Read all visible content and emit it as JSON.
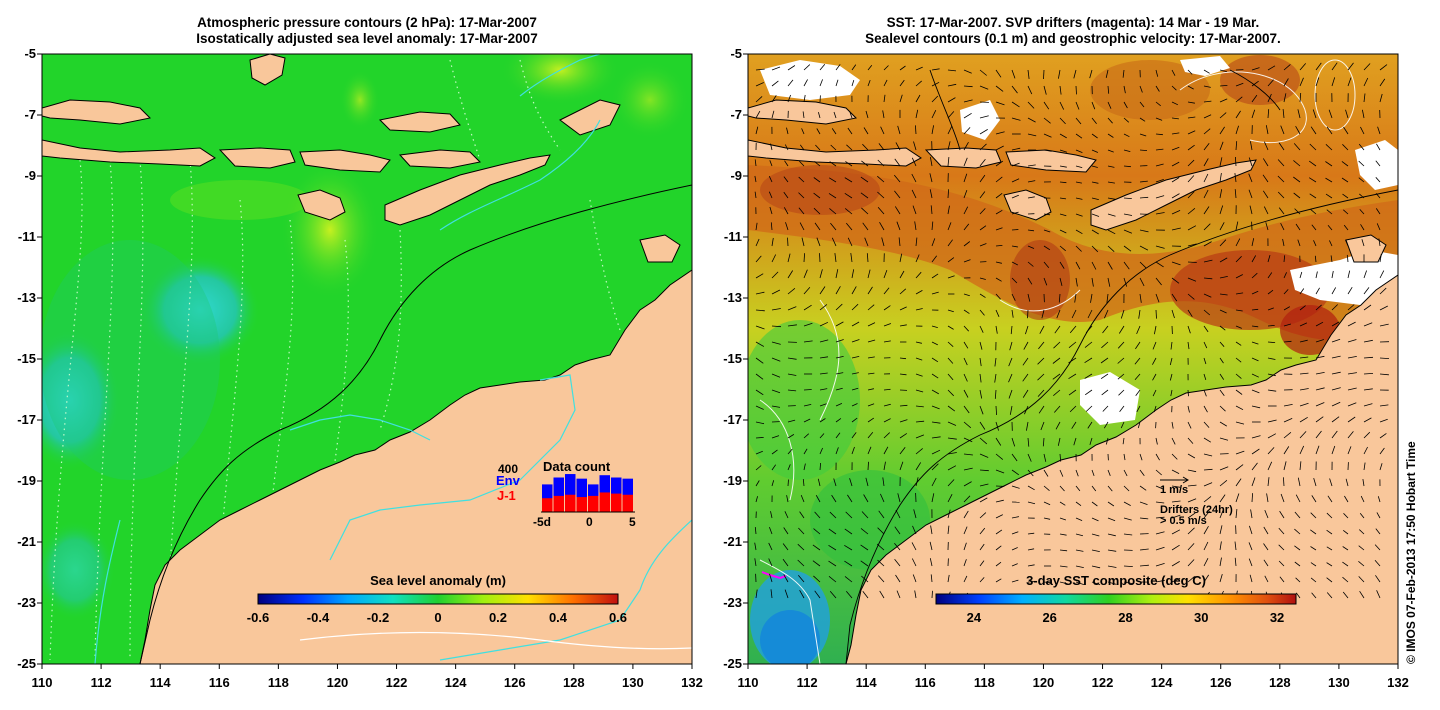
{
  "left_panel": {
    "title_line1": "Atmospheric pressure contours (2 hPa): 17-Mar-2007",
    "title_line2": "Isostatically adjusted sea level anomaly: 17-Mar-2007",
    "x_ticks": [
      "110",
      "112",
      "114",
      "116",
      "118",
      "120",
      "122",
      "124",
      "126",
      "128",
      "130",
      "132"
    ],
    "y_ticks": [
      "-5",
      "-7",
      "-9",
      "-11",
      "-13",
      "-15",
      "-17",
      "-19",
      "-21",
      "-23",
      "-25"
    ],
    "colorbar": {
      "title": "Sea level anomaly (m)",
      "ticks": [
        "-0.6",
        "-0.4",
        "-0.2",
        "0",
        "0.2",
        "0.4",
        "0.6"
      ],
      "range": [
        -0.6,
        0.6
      ]
    },
    "inset": {
      "title": "Data count",
      "max_label": "400",
      "series1": "Env",
      "series2": "J-1",
      "x_ticks": [
        "-5d",
        "0",
        "5"
      ],
      "series1_color": "#0000ff",
      "series2_color": "#ff0000",
      "env_counts": [
        240,
        300,
        330,
        290,
        240,
        320,
        300,
        290
      ],
      "j1_counts": [
        120,
        140,
        150,
        130,
        140,
        170,
        160,
        150
      ]
    }
  },
  "right_panel": {
    "title_line1": "SST: 17-Mar-2007. SVP drifters (magenta): 14 Mar - 19 Mar.",
    "title_line2": "Sealevel contours (0.1 m) and geostrophic velocity: 17-Mar-2007.",
    "x_ticks": [
      "110",
      "112",
      "114",
      "116",
      "118",
      "120",
      "122",
      "124",
      "126",
      "128",
      "130",
      "132"
    ],
    "y_ticks": [
      "-5",
      "-7",
      "-9",
      "-11",
      "-13",
      "-15",
      "-17",
      "-19",
      "-21",
      "-23",
      "-25"
    ],
    "colorbar": {
      "title": "3-day SST composite (deg C)",
      "ticks": [
        "24",
        "26",
        "28",
        "30",
        "32"
      ],
      "range": [
        23,
        32.5
      ]
    },
    "velocity_scale_label": "1 m/s",
    "drifters_label": "Drifters (24hr)",
    "drifter_speed_label": "> 0.5 m/s"
  },
  "credit": "© IMOS 07-Feb-2013 17:50 Hobart Time",
  "colors": {
    "land": "#f9c79b",
    "ocean_green": "#22d42a",
    "coast_line": "#000000",
    "isobath": "#40e0e0",
    "drifter": "#ff00ff"
  }
}
